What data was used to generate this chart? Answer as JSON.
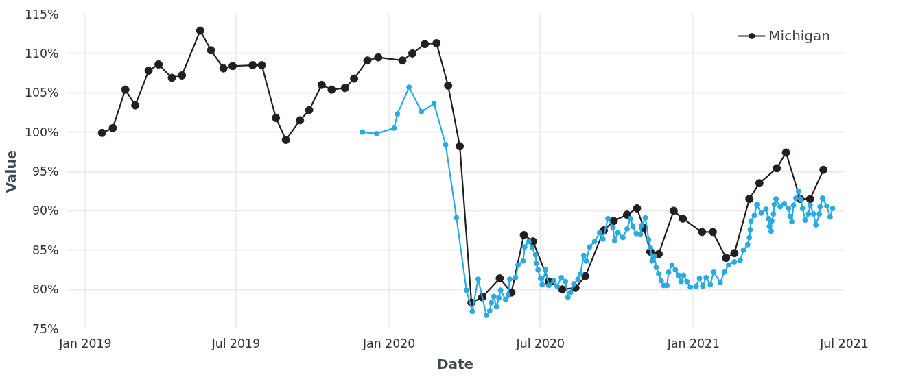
{
  "chart_data": {
    "type": "line",
    "xlabel": "Date",
    "ylabel": "Value",
    "xlim": [
      "2018-12-09",
      "2021-07-01"
    ],
    "ylim": [
      75,
      115
    ],
    "xticks": [
      {
        "value": "2019-01-01",
        "label": "Jan 2019"
      },
      {
        "value": "2019-07-01",
        "label": "Jul 2019"
      },
      {
        "value": "2020-01-01",
        "label": "Jan 2020"
      },
      {
        "value": "2020-07-01",
        "label": "Jul 2020"
      },
      {
        "value": "2021-01-01",
        "label": "Jan 2021"
      },
      {
        "value": "2021-07-01",
        "label": "Jul 2021"
      }
    ],
    "yticks": [
      {
        "value": 75,
        "label": "75%"
      },
      {
        "value": 80,
        "label": "80%"
      },
      {
        "value": 85,
        "label": "85%"
      },
      {
        "value": 90,
        "label": "90%"
      },
      {
        "value": 95,
        "label": "95%"
      },
      {
        "value": 100,
        "label": "100%"
      },
      {
        "value": 105,
        "label": "105%"
      },
      {
        "value": 110,
        "label": "110%"
      },
      {
        "value": 115,
        "label": "115%"
      }
    ],
    "grid": true,
    "legend": "top right",
    "marker": "circle",
    "line_style": "solid",
    "series": [
      {
        "name": "Michigan",
        "color": "#231f20",
        "x": [
          "2019-01-21",
          "2019-02-03",
          "2019-02-18",
          "2019-03-02",
          "2019-03-18",
          "2019-03-30",
          "2019-04-15",
          "2019-04-27",
          "2019-05-19",
          "2019-06-01",
          "2019-06-16",
          "2019-06-27",
          "2019-07-21",
          "2019-08-01",
          "2019-08-18",
          "2019-08-30",
          "2019-09-16",
          "2019-09-27",
          "2019-10-12",
          "2019-10-24",
          "2019-11-09",
          "2019-11-20",
          "2019-12-06",
          "2019-12-19",
          "2020-01-17",
          "2020-01-29",
          "2020-02-13",
          "2020-02-27",
          "2020-03-12",
          "2020-03-26",
          "2020-04-09",
          "2020-04-22",
          "2020-05-13",
          "2020-05-27",
          "2020-06-11",
          "2020-06-22",
          "2020-07-11",
          "2020-07-27",
          "2020-08-12",
          "2020-08-24",
          "2020-09-15",
          "2020-09-27",
          "2020-10-13",
          "2020-10-25",
          "2020-11-02",
          "2020-11-10",
          "2020-11-20",
          "2020-12-08",
          "2020-12-19",
          "2021-01-11",
          "2021-01-24",
          "2021-02-09",
          "2021-02-19",
          "2021-03-09",
          "2021-03-21",
          "2021-04-11",
          "2021-04-22",
          "2021-05-09",
          "2021-05-21",
          "2021-06-06"
        ],
        "values": [
          99.9,
          100.5,
          105.4,
          103.4,
          107.8,
          108.6,
          106.9,
          107.2,
          112.9,
          110.4,
          108.1,
          108.4,
          108.5,
          108.5,
          101.8,
          99.0,
          101.5,
          102.8,
          106.0,
          105.4,
          105.6,
          106.8,
          109.1,
          109.5,
          109.1,
          110.0,
          111.2,
          111.3,
          105.9,
          98.2,
          78.3,
          79.0,
          81.4,
          79.6,
          86.9,
          86.1,
          81.0,
          80.0,
          80.2,
          81.7,
          87.5,
          88.7,
          89.5,
          90.3,
          87.8,
          84.8,
          84.5,
          90.0,
          89.0,
          87.3,
          87.3,
          84.0,
          84.6,
          91.5,
          93.5,
          95.4,
          97.4,
          91.5,
          91.5,
          95.2
        ]
      },
      {
        "color": "#29abe2",
        "x": [
          "2019-11-30",
          "2019-12-17",
          "2020-01-07",
          "2020-01-11",
          "2020-01-25",
          "2020-02-09",
          "2020-02-24",
          "2020-03-09",
          "2020-03-22",
          "2020-04-03",
          "2020-04-10",
          "2020-04-17",
          "2020-04-27",
          "2020-05-01",
          "2020-05-03",
          "2020-05-06",
          "2020-05-09",
          "2020-05-12",
          "2020-05-14",
          "2020-05-20",
          "2020-05-23",
          "2020-05-25",
          "2020-06-01",
          "2020-06-04",
          "2020-06-10",
          "2020-06-12",
          "2020-06-17",
          "2020-06-21",
          "2020-06-25",
          "2020-06-26",
          "2020-06-28",
          "2020-07-01",
          "2020-07-03",
          "2020-07-07",
          "2020-07-11",
          "2020-07-17",
          "2020-07-21",
          "2020-07-26",
          "2020-07-31",
          "2020-08-03",
          "2020-08-06",
          "2020-08-10",
          "2020-08-15",
          "2020-08-18",
          "2020-08-22",
          "2020-08-25",
          "2020-08-29",
          "2020-09-04",
          "2020-09-10",
          "2020-09-14",
          "2020-09-20",
          "2020-09-26",
          "2020-09-28",
          "2020-10-02",
          "2020-10-08",
          "2020-10-13",
          "2020-10-17",
          "2020-10-20",
          "2020-10-24",
          "2020-10-29",
          "2020-10-30",
          "2020-11-04",
          "2020-11-08",
          "2020-11-10",
          "2020-11-12",
          "2020-11-15",
          "2020-11-17",
          "2020-11-20",
          "2020-11-23",
          "2020-11-26",
          "2020-11-30",
          "2020-12-02",
          "2020-12-06",
          "2020-12-10",
          "2020-12-14",
          "2020-12-17",
          "2020-12-20",
          "2020-12-24",
          "2020-12-28",
          "2021-01-04",
          "2021-01-08",
          "2021-01-12",
          "2021-01-16",
          "2021-01-21",
          "2021-01-25",
          "2021-02-02",
          "2021-02-07",
          "2021-02-12",
          "2021-02-19",
          "2021-02-26",
          "2021-03-02",
          "2021-03-07",
          "2021-03-09",
          "2021-03-10",
          "2021-03-11",
          "2021-03-15",
          "2021-03-18",
          "2021-03-23",
          "2021-03-29",
          "2021-04-01",
          "2021-04-02",
          "2021-04-04",
          "2021-04-05",
          "2021-04-07",
          "2021-04-08",
          "2021-04-10",
          "2021-04-15",
          "2021-04-20",
          "2021-04-25",
          "2021-04-27",
          "2021-04-29",
          "2021-05-01",
          "2021-05-04",
          "2021-05-07",
          "2021-05-10",
          "2021-05-12",
          "2021-05-15",
          "2021-05-19",
          "2021-05-21",
          "2021-05-25",
          "2021-05-28",
          "2021-06-01",
          "2021-06-02",
          "2021-06-05",
          "2021-06-10",
          "2021-06-14",
          "2021-06-17"
        ],
        "values": [
          100.0,
          99.8,
          100.5,
          102.3,
          105.7,
          102.6,
          103.6,
          98.4,
          89.1,
          79.9,
          77.2,
          81.3,
          76.7,
          77.3,
          78.3,
          79.1,
          77.8,
          78.9,
          79.9,
          78.7,
          79.3,
          81.3,
          81.5,
          83.1,
          83.6,
          85.4,
          86.1,
          85.3,
          84.4,
          83.3,
          82.5,
          81.4,
          80.6,
          82.5,
          80.5,
          81.1,
          80.4,
          81.5,
          81.0,
          79.0,
          79.6,
          80.7,
          81.3,
          82.0,
          84.3,
          83.6,
          85.4,
          86.1,
          87.2,
          86.4,
          89.0,
          87.9,
          86.2,
          87.2,
          86.6,
          87.7,
          89.0,
          88.0,
          87.1,
          87.0,
          88.1,
          89.1,
          86.3,
          85.3,
          83.6,
          84.2,
          82.8,
          82.0,
          81.1,
          80.5,
          80.5,
          82.2,
          83.1,
          82.5,
          81.8,
          81.0,
          81.8,
          81.0,
          80.3,
          80.4,
          81.4,
          80.4,
          81.5,
          80.6,
          82.2,
          80.9,
          82.2,
          83.1,
          83.5,
          83.7,
          85.0,
          85.7,
          86.6,
          87.6,
          88.7,
          89.4,
          90.8,
          89.7,
          90.2,
          89.0,
          88.0,
          87.4,
          88.7,
          89.6,
          90.8,
          91.5,
          90.5,
          90.9,
          90.3,
          89.3,
          88.6,
          90.7,
          91.6,
          92.5,
          91.4,
          90.3,
          88.8,
          89.6,
          90.7,
          89.6,
          88.2,
          89.6,
          90.5,
          91.6,
          90.6,
          89.2,
          90.3
        ]
      }
    ]
  }
}
